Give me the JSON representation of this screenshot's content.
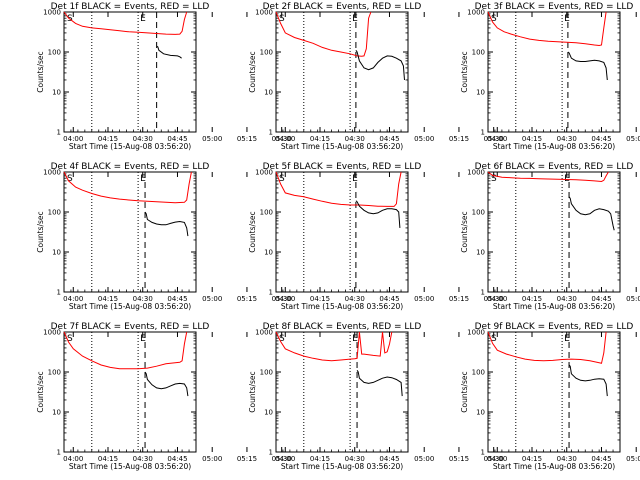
{
  "chart_data": {
    "type": "line",
    "ylabel": "Counts/sec",
    "xlabel": "Start Time (15-Aug-08 03:56:20)",
    "yscale": "log",
    "ylim": [
      1,
      1000
    ],
    "y_ticks": [
      "1",
      "10",
      "100",
      "1000"
    ],
    "x_range_min": [
      -20,
      37
    ],
    "x_ticks": [
      "04:00",
      "04:15",
      "04:30",
      "04:45",
      "05:00",
      "05:15",
      "05:30"
    ],
    "marker_S": "S",
    "marker_E": "E",
    "vline_dotted_min": [
      12,
      32
    ],
    "colors": {
      "events": "#000000",
      "lld": "#ff0000",
      "axes": "#000000"
    },
    "panels": [
      {
        "title": "Det 1f BLACK = Events, RED = LLD",
        "dash_min": 20.0,
        "red": [
          [
            -20,
            1000
          ],
          [
            -18,
            700
          ],
          [
            -15,
            520
          ],
          [
            -12,
            440
          ],
          [
            -8,
            400
          ],
          [
            -4,
            380
          ],
          [
            0,
            360
          ],
          [
            4,
            340
          ],
          [
            8,
            320
          ],
          [
            12,
            310
          ],
          [
            16,
            300
          ],
          [
            20,
            290
          ],
          [
            24,
            280
          ],
          [
            28,
            275
          ],
          [
            30,
            280
          ],
          [
            31,
            330
          ],
          [
            32,
            650
          ],
          [
            33,
            1000
          ]
        ],
        "black": [
          [
            20,
            140
          ],
          [
            20.5,
            135
          ],
          [
            21,
            110
          ],
          [
            23,
            90
          ],
          [
            26,
            82
          ],
          [
            29,
            80
          ],
          [
            30,
            76
          ],
          [
            30.8,
            70
          ]
        ]
      },
      {
        "title": "Det 2f BLACK = Events, RED = LLD",
        "dash_min": 14.5,
        "red": [
          [
            -20,
            1000
          ],
          [
            -18,
            520
          ],
          [
            -16,
            300
          ],
          [
            -12,
            230
          ],
          [
            -8,
            195
          ],
          [
            -4,
            165
          ],
          [
            0,
            130
          ],
          [
            4,
            110
          ],
          [
            8,
            100
          ],
          [
            12,
            90
          ],
          [
            15,
            80
          ],
          [
            17,
            78
          ],
          [
            18,
            80
          ],
          [
            19,
            120
          ],
          [
            20,
            700
          ],
          [
            21,
            1000
          ]
        ],
        "black": [
          [
            14.5,
            110
          ],
          [
            15,
            100
          ],
          [
            16,
            60
          ],
          [
            18,
            40
          ],
          [
            20,
            36
          ],
          [
            22,
            40
          ],
          [
            24,
            55
          ],
          [
            26,
            70
          ],
          [
            28,
            80
          ],
          [
            30,
            78
          ],
          [
            32,
            70
          ],
          [
            34,
            60
          ],
          [
            35,
            45
          ],
          [
            35.5,
            20
          ]
        ]
      },
      {
        "title": "Det 3f BLACK = Events, RED = LLD",
        "dash_min": 14.5,
        "red": [
          [
            -20,
            1000
          ],
          [
            -18,
            560
          ],
          [
            -16,
            400
          ],
          [
            -13,
            320
          ],
          [
            -10,
            280
          ],
          [
            -6,
            240
          ],
          [
            -2,
            210
          ],
          [
            2,
            195
          ],
          [
            6,
            185
          ],
          [
            10,
            180
          ],
          [
            14,
            175
          ],
          [
            18,
            170
          ],
          [
            22,
            160
          ],
          [
            26,
            150
          ],
          [
            28,
            145
          ],
          [
            29,
            150
          ],
          [
            30,
            400
          ],
          [
            31,
            1000
          ]
        ],
        "black": [
          [
            14.5,
            100
          ],
          [
            15,
            95
          ],
          [
            16,
            70
          ],
          [
            18,
            60
          ],
          [
            20,
            58
          ],
          [
            22,
            58
          ],
          [
            24,
            60
          ],
          [
            26,
            62
          ],
          [
            28,
            60
          ],
          [
            30,
            55
          ],
          [
            31,
            40
          ],
          [
            31.5,
            20
          ]
        ]
      },
      {
        "title": "Det 4f BLACK = Events, RED = LLD",
        "dash_min": 15.0,
        "red": [
          [
            -20,
            1000
          ],
          [
            -18,
            600
          ],
          [
            -15,
            420
          ],
          [
            -12,
            350
          ],
          [
            -8,
            290
          ],
          [
            -4,
            250
          ],
          [
            0,
            225
          ],
          [
            4,
            210
          ],
          [
            8,
            200
          ],
          [
            12,
            190
          ],
          [
            16,
            185
          ],
          [
            20,
            180
          ],
          [
            24,
            175
          ],
          [
            28,
            170
          ],
          [
            32,
            175
          ],
          [
            33,
            200
          ],
          [
            34,
            500
          ],
          [
            35,
            1000
          ]
        ],
        "black": [
          [
            15,
            100
          ],
          [
            15.5,
            90
          ],
          [
            16,
            65
          ],
          [
            18,
            55
          ],
          [
            20,
            50
          ],
          [
            22,
            48
          ],
          [
            24,
            48
          ],
          [
            26,
            52
          ],
          [
            28,
            56
          ],
          [
            30,
            58
          ],
          [
            32,
            55
          ],
          [
            33,
            40
          ],
          [
            33.5,
            25
          ]
        ]
      },
      {
        "title": "Det 5f BLACK = Events, RED = LLD",
        "dash_min": 14.5,
        "red": [
          [
            -20,
            1000
          ],
          [
            -18,
            500
          ],
          [
            -16,
            300
          ],
          [
            -12,
            260
          ],
          [
            -8,
            240
          ],
          [
            -4,
            210
          ],
          [
            0,
            185
          ],
          [
            4,
            165
          ],
          [
            8,
            155
          ],
          [
            12,
            150
          ],
          [
            16,
            150
          ],
          [
            20,
            145
          ],
          [
            24,
            140
          ],
          [
            28,
            138
          ],
          [
            31,
            138
          ],
          [
            32,
            160
          ],
          [
            33,
            500
          ],
          [
            34,
            1000
          ]
        ],
        "black": [
          [
            14.5,
            190
          ],
          [
            15,
            180
          ],
          [
            16,
            140
          ],
          [
            18,
            110
          ],
          [
            20,
            95
          ],
          [
            22,
            90
          ],
          [
            24,
            95
          ],
          [
            26,
            110
          ],
          [
            28,
            120
          ],
          [
            30,
            120
          ],
          [
            32,
            115
          ],
          [
            33,
            100
          ],
          [
            33.5,
            40
          ]
        ]
      },
      {
        "title": "Det 6f BLACK = Events, RED = LLD",
        "dash_min": 15.0,
        "red": [
          [
            -20,
            1000
          ],
          [
            -18,
            820
          ],
          [
            -14,
            740
          ],
          [
            -10,
            720
          ],
          [
            -6,
            700
          ],
          [
            -2,
            690
          ],
          [
            2,
            680
          ],
          [
            6,
            670
          ],
          [
            10,
            660
          ],
          [
            14,
            650
          ],
          [
            18,
            640
          ],
          [
            22,
            620
          ],
          [
            26,
            600
          ],
          [
            29,
            580
          ],
          [
            30,
            620
          ],
          [
            31,
            800
          ],
          [
            32,
            1000
          ]
        ],
        "black": [
          [
            15,
            240
          ],
          [
            15.5,
            220
          ],
          [
            16,
            160
          ],
          [
            18,
            110
          ],
          [
            20,
            90
          ],
          [
            22,
            85
          ],
          [
            24,
            90
          ],
          [
            26,
            110
          ],
          [
            28,
            120
          ],
          [
            30,
            115
          ],
          [
            32,
            105
          ],
          [
            33,
            90
          ],
          [
            34,
            45
          ],
          [
            34.5,
            35
          ]
        ]
      },
      {
        "title": "Det 7f BLACK = Events, RED = LLD",
        "dash_min": 15.0,
        "red": [
          [
            -20,
            1000
          ],
          [
            -18,
            560
          ],
          [
            -16,
            380
          ],
          [
            -12,
            250
          ],
          [
            -8,
            190
          ],
          [
            -4,
            150
          ],
          [
            0,
            130
          ],
          [
            4,
            120
          ],
          [
            8,
            120
          ],
          [
            12,
            120
          ],
          [
            16,
            125
          ],
          [
            20,
            140
          ],
          [
            24,
            160
          ],
          [
            28,
            170
          ],
          [
            30,
            175
          ],
          [
            31,
            190
          ],
          [
            32,
            500
          ],
          [
            33,
            1000
          ]
        ],
        "black": [
          [
            15,
            100
          ],
          [
            15.5,
            90
          ],
          [
            16,
            65
          ],
          [
            18,
            48
          ],
          [
            20,
            40
          ],
          [
            22,
            38
          ],
          [
            24,
            40
          ],
          [
            26,
            45
          ],
          [
            28,
            50
          ],
          [
            30,
            52
          ],
          [
            32,
            50
          ],
          [
            33,
            40
          ],
          [
            33.5,
            25
          ]
        ]
      },
      {
        "title": "Det 8f BLACK = Events, RED = LLD",
        "dash_min": 15.0,
        "red": [
          [
            -20,
            1000
          ],
          [
            -18,
            580
          ],
          [
            -16,
            380
          ],
          [
            -12,
            300
          ],
          [
            -8,
            250
          ],
          [
            -4,
            220
          ],
          [
            0,
            200
          ],
          [
            4,
            190
          ],
          [
            8,
            200
          ],
          [
            12,
            210
          ],
          [
            14,
            215
          ],
          [
            15,
            220
          ],
          [
            16,
            1000
          ],
          [
            17,
            280
          ],
          [
            18,
            280
          ],
          [
            22,
            260
          ],
          [
            25,
            250
          ],
          [
            26,
            1000
          ],
          [
            27,
            300
          ],
          [
            28,
            320
          ],
          [
            29,
            500
          ],
          [
            30,
            1000
          ]
        ],
        "black": [
          [
            15,
            110
          ],
          [
            15.5,
            100
          ],
          [
            16,
            70
          ],
          [
            18,
            55
          ],
          [
            20,
            52
          ],
          [
            22,
            55
          ],
          [
            24,
            62
          ],
          [
            26,
            70
          ],
          [
            28,
            75
          ],
          [
            30,
            72
          ],
          [
            32,
            65
          ],
          [
            34,
            55
          ],
          [
            34.5,
            25
          ]
        ]
      },
      {
        "title": "Det 9f BLACK = Events, RED = LLD",
        "dash_min": 15.0,
        "red": [
          [
            -20,
            1000
          ],
          [
            -18,
            520
          ],
          [
            -16,
            350
          ],
          [
            -12,
            280
          ],
          [
            -8,
            240
          ],
          [
            -4,
            210
          ],
          [
            0,
            195
          ],
          [
            4,
            190
          ],
          [
            8,
            195
          ],
          [
            12,
            205
          ],
          [
            16,
            210
          ],
          [
            20,
            205
          ],
          [
            24,
            190
          ],
          [
            28,
            170
          ],
          [
            29,
            165
          ],
          [
            30,
            300
          ],
          [
            31,
            1000
          ]
        ],
        "black": [
          [
            15,
            150
          ],
          [
            15.5,
            140
          ],
          [
            16,
            90
          ],
          [
            18,
            70
          ],
          [
            20,
            62
          ],
          [
            22,
            60
          ],
          [
            24,
            62
          ],
          [
            26,
            66
          ],
          [
            28,
            68
          ],
          [
            30,
            66
          ],
          [
            31,
            50
          ],
          [
            31.5,
            25
          ]
        ]
      }
    ]
  }
}
